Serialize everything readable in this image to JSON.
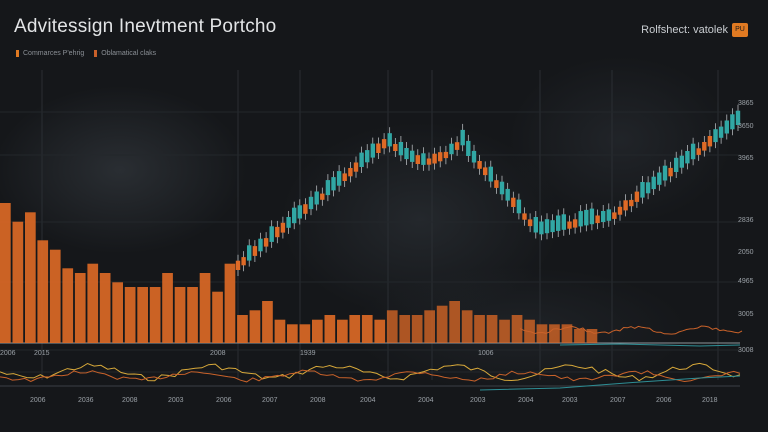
{
  "header": {
    "title": "Advitessign  Inevtment Portcho",
    "legend": [
      {
        "label": "Commarces P'ehrig",
        "color": "#e07a22"
      },
      {
        "label": "Oblamatical claks",
        "color": "#c8602a"
      }
    ],
    "top_right_label": "Rolfshect: vatolek",
    "badge_text": "PU"
  },
  "chart_data": {
    "type": "bar",
    "title": "Advitessign  Inevtment Portcho",
    "bar_values": [
      30,
      26,
      28,
      22,
      20,
      16,
      15,
      17,
      15,
      13,
      12,
      12,
      12,
      15,
      12,
      12,
      15,
      11,
      17,
      6,
      7,
      9,
      5,
      4,
      4,
      5,
      6,
      5,
      6,
      6,
      5,
      7,
      6,
      6,
      7,
      8,
      9,
      7,
      6,
      6,
      5,
      6,
      5,
      4,
      4,
      4,
      3,
      3
    ],
    "y_axis_labels": [
      "3865",
      "3650",
      "3965",
      "2836",
      "2050",
      "4965",
      "3005",
      "3008"
    ],
    "x_axis_upper_labels": [
      "2006",
      "2015",
      "2008",
      "1939",
      "1006"
    ],
    "x_axis_lower_labels": [
      "2006",
      "2036",
      "2008",
      "2003",
      "2006",
      "2007",
      "2008",
      "2004",
      "2004",
      "2003",
      "2004",
      "2003",
      "2007",
      "2006",
      "2018"
    ],
    "overlay_lines": [
      {
        "color": "#d8a93a",
        "role": "yellow trace"
      },
      {
        "color": "#c9622a",
        "role": "orange trace"
      },
      {
        "color": "#2e8e95",
        "role": "teal trace"
      }
    ],
    "bar_color": "#df6a26",
    "candle_up_color": "#31a7a4",
    "candle_down_color": "#df6a26"
  }
}
